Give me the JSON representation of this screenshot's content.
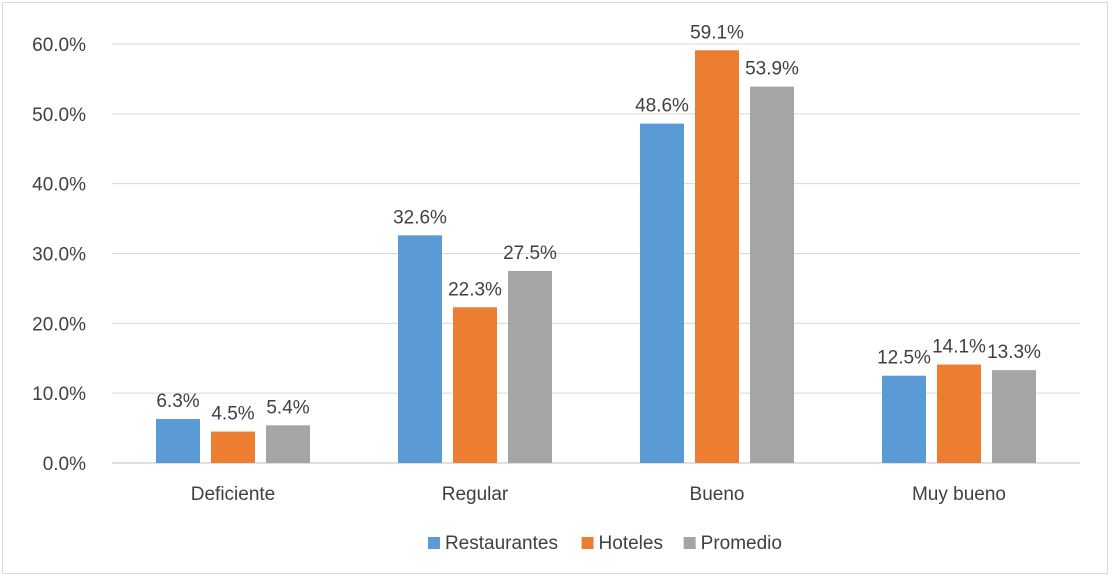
{
  "chart_data": {
    "type": "bar",
    "title": "",
    "xlabel": "",
    "ylabel": "",
    "categories": [
      "Deficiente",
      "Regular",
      "Bueno",
      "Muy bueno"
    ],
    "series": [
      {
        "name": "Restaurantes",
        "values": [
          6.3,
          32.6,
          48.6,
          12.5
        ],
        "color": "#5b9bd5"
      },
      {
        "name": "Hoteles",
        "values": [
          4.5,
          22.3,
          59.1,
          14.1
        ],
        "color": "#ed7d31"
      },
      {
        "name": "Promedio",
        "values": [
          5.4,
          27.5,
          53.9,
          13.3
        ],
        "color": "#a5a5a5"
      }
    ],
    "ylim": [
      0,
      60
    ],
    "yticks": [
      "0.0%",
      "10.0%",
      "20.0%",
      "30.0%",
      "40.0%",
      "50.0%",
      "60.0%"
    ],
    "value_suffix": "%",
    "grid": true,
    "legend_position": "bottom"
  }
}
